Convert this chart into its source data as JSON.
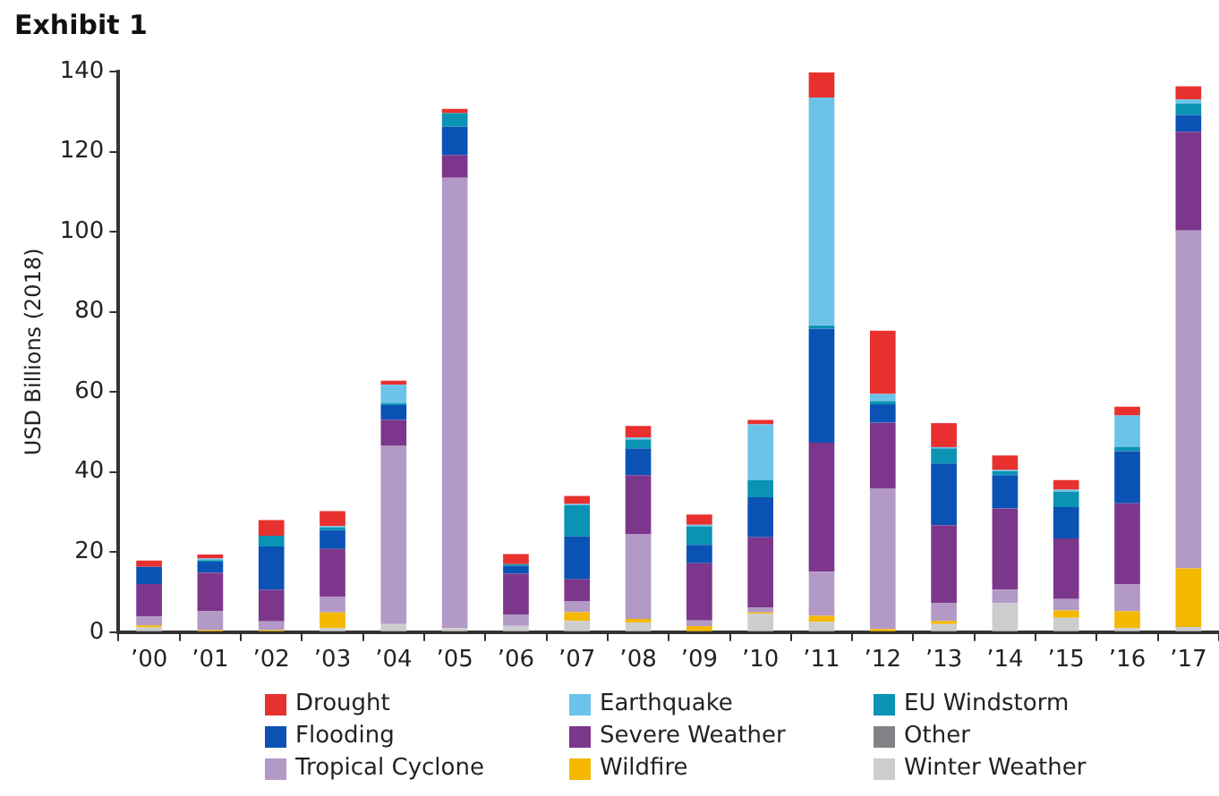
{
  "chart_data": {
    "type": "bar",
    "title": "Exhibit 1",
    "ylabel": "USD Billions (2018)",
    "categories": [
      "’00",
      "’01",
      "’02",
      "’03",
      "’04",
      "’05",
      "’06",
      "’07",
      "’08",
      "’09",
      "’10",
      "’11",
      "’12",
      "’13",
      "’14",
      "’15",
      "’16",
      "’17"
    ],
    "stacked": true,
    "ylim": [
      0,
      140
    ],
    "yticks": [
      0,
      20,
      40,
      60,
      80,
      100,
      120,
      140
    ],
    "grid": false,
    "legend": "bottom",
    "series": [
      {
        "name": "Winter Weather",
        "color": "#cdcdcf",
        "values": [
          1.2,
          null,
          null,
          1,
          2,
          1,
          1.6,
          2.8,
          2.4,
          null,
          4.6,
          2.6,
          null,
          2,
          7.2,
          3.6,
          1,
          1.3
        ]
      },
      {
        "name": "Wildfire",
        "color": "#f5b800",
        "values": [
          0.5,
          0.5,
          0.5,
          3.9,
          0,
          0,
          0,
          2.2,
          0.9,
          1.5,
          0.3,
          1.5,
          0.8,
          0.8,
          0,
          1.8,
          4.2,
          14.6
        ]
      },
      {
        "name": "Tropical Cyclone",
        "color": "#b39ac6",
        "values": [
          2.3,
          4.7,
          2.2,
          4,
          44.5,
          112.5,
          2.8,
          2.8,
          21.1,
          1.4,
          1.3,
          11,
          35.1,
          4.4,
          3.4,
          2.9,
          6.7,
          84.4
        ]
      },
      {
        "name": "Other",
        "color": "#808285",
        "values": [
          0,
          0,
          0,
          0,
          0,
          0,
          0,
          0,
          0,
          0,
          0,
          0,
          0,
          0,
          0,
          0,
          0,
          0
        ]
      },
      {
        "name": "Severe Weather",
        "color": "#7c378c",
        "values": [
          8,
          9.6,
          7.9,
          11.9,
          6.5,
          5.7,
          10.2,
          5.4,
          14.8,
          14.3,
          17.5,
          32.2,
          16.4,
          19.5,
          20.3,
          15.1,
          20.3,
          24.7
        ]
      },
      {
        "name": "Flooding",
        "color": "#0b52b5",
        "values": [
          4.3,
          2.8,
          10.8,
          4.7,
          3.7,
          7,
          2,
          10.7,
          6.7,
          4.6,
          10,
          28.5,
          4.6,
          15.4,
          8.3,
          7.8,
          13,
          4.1
        ]
      },
      {
        "name": "EU Windstorm",
        "color": "#0a93b3",
        "values": [
          0,
          0.4,
          2.7,
          0.7,
          0.5,
          3.4,
          0.4,
          7.8,
          2.2,
          4.6,
          4.2,
          0.8,
          0.8,
          3.8,
          1,
          3.9,
          1,
          2.9
        ]
      },
      {
        "name": "Earthquake",
        "color": "#6cc3e9",
        "values": [
          0,
          0.4,
          0,
          0.3,
          4.6,
          0,
          0,
          0.3,
          0.5,
          0.4,
          14,
          56.9,
          1.8,
          0.3,
          0.3,
          0.5,
          7.9,
          1
        ]
      },
      {
        "name": "Drought",
        "color": "#e8312f",
        "values": [
          1.6,
          1,
          3.9,
          3.7,
          1,
          1.1,
          2.5,
          2,
          2.9,
          2.6,
          1.1,
          6.3,
          15.8,
          6,
          3.6,
          2.4,
          2.2,
          3.3
        ]
      }
    ]
  }
}
